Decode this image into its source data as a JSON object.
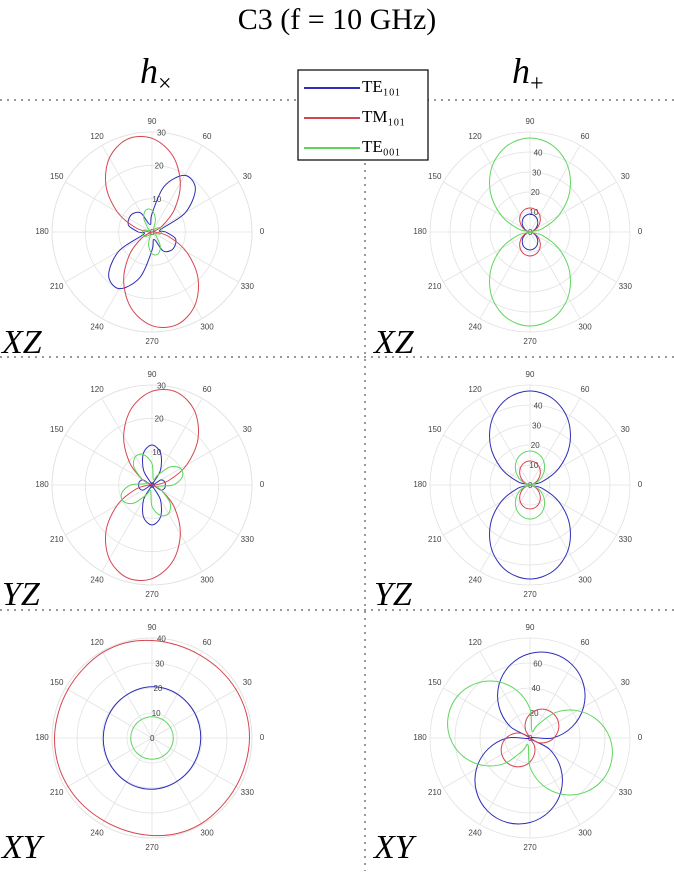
{
  "figure": {
    "title": "C3 (f = 10 GHz)",
    "column_labels": [
      {
        "base": "h",
        "sub": "×"
      },
      {
        "base": "h",
        "sub": "+"
      }
    ],
    "row_labels": [
      "XZ",
      "XZ",
      "YZ",
      "YZ",
      "XY",
      "XY"
    ],
    "legend": [
      {
        "name": "TE₁₀₁",
        "color": "#2e2eb8"
      },
      {
        "name": "TM₁₀₁",
        "color": "#d6454f"
      },
      {
        "name": "TE₀₀₁",
        "color": "#5ed65e"
      }
    ]
  },
  "chart_data": [
    {
      "type": "polar",
      "rlim": [
        0,
        30
      ],
      "rticks": [
        0,
        10,
        20,
        30
      ],
      "thetaticks": [
        0,
        30,
        60,
        90,
        120,
        150,
        180,
        210,
        240,
        270,
        300,
        330
      ],
      "theta": [
        0,
        15,
        30,
        45,
        60,
        75,
        90,
        105,
        120,
        135,
        150,
        165,
        180,
        195,
        210,
        225,
        240,
        255,
        270,
        285,
        300,
        315,
        330,
        345
      ],
      "series": [
        [
          4.1,
          2.6,
          11.5,
          18.4,
          19.6,
          14.2,
          5.5,
          2.3,
          6.5,
          7.9,
          8.0,
          7.2,
          4.1,
          2.6,
          11.5,
          18.4,
          19.6,
          14.2,
          5.5,
          2.3,
          6.5,
          7.9,
          8.0,
          7.2
        ],
        [
          0.9,
          0.2,
          3.4,
          9.5,
          17.0,
          23.8,
          28.1,
          28.8,
          25.6,
          19.5,
          12.0,
          5.2,
          0.9,
          0.2,
          3.4,
          9.5,
          17.0,
          23.8,
          28.1,
          28.8,
          25.6,
          19.5,
          12.0,
          5.2
        ],
        [
          2.9,
          3.0,
          2.7,
          1.5,
          0.9,
          4.0,
          6.5,
          6.9,
          5.0,
          1.9,
          0.8,
          2.4,
          2.9,
          3.0,
          2.7,
          1.5,
          0.9,
          4.0,
          6.5,
          6.9,
          5.0,
          1.9,
          0.8,
          2.4
        ]
      ]
    },
    {
      "type": "polar",
      "rlim": [
        0,
        50
      ],
      "rticks": [
        0,
        10,
        20,
        30,
        40
      ],
      "thetaticks": [
        0,
        30,
        60,
        90,
        120,
        150,
        180,
        210,
        240,
        270,
        300,
        330
      ],
      "theta": [
        0,
        15,
        30,
        45,
        60,
        75,
        90,
        105,
        120,
        135,
        150,
        165,
        180,
        195,
        210,
        225,
        240,
        255,
        270,
        285,
        300,
        315,
        330,
        345
      ],
      "series": [
        [
          0,
          1.2,
          3.2,
          5.4,
          7.3,
          8.5,
          9,
          8.5,
          7.3,
          5.4,
          3.2,
          1.2,
          0,
          1.2,
          3.2,
          5.4,
          7.3,
          8.5,
          9,
          8.5,
          7.3,
          5.4,
          3.2,
          1.2
        ],
        [
          0,
          1.6,
          4.2,
          7.1,
          9.7,
          11.4,
          12,
          11.4,
          9.7,
          7.1,
          4.2,
          1.6,
          0,
          1.6,
          4.2,
          7.1,
          9.7,
          11.4,
          12,
          11.4,
          9.7,
          7.1,
          4.2,
          1.6
        ],
        [
          0,
          6.2,
          16.6,
          28.0,
          37.9,
          44.6,
          47,
          44.6,
          37.9,
          28.0,
          16.6,
          6.2,
          0,
          6.2,
          16.6,
          28.0,
          37.9,
          44.6,
          47,
          44.6,
          37.9,
          28.0,
          16.6,
          6.2
        ]
      ]
    },
    {
      "type": "polar",
      "rlim": [
        0,
        30
      ],
      "rticks": [
        0,
        10,
        20,
        30
      ],
      "thetaticks": [
        0,
        30,
        60,
        90,
        120,
        150,
        180,
        210,
        240,
        270,
        300,
        330
      ],
      "theta": [
        0,
        15,
        30,
        45,
        60,
        75,
        90,
        105,
        120,
        135,
        150,
        165,
        180,
        195,
        210,
        225,
        240,
        255,
        270,
        285,
        300,
        315,
        330,
        345
      ],
      "series": [
        [
          4,
          3.9,
          3.0,
          0,
          5.0,
          9.9,
          12,
          9.9,
          5.0,
          0,
          3.0,
          3.9,
          4,
          3.9,
          3.0,
          0,
          5.0,
          9.9,
          12,
          9.9,
          5.0,
          0,
          3.0,
          3.9
        ],
        [
          0.9,
          5.2,
          12.0,
          19.5,
          25.6,
          28.8,
          28.1,
          23.8,
          17.0,
          9.5,
          3.4,
          0.2,
          0.9,
          5.2,
          12.0,
          19.5,
          25.6,
          28.8,
          28.1,
          23.8,
          17.0,
          9.5,
          3.4,
          0.2
        ],
        [
          6.4,
          9.4,
          9.9,
          7.7,
          3.4,
          1.7,
          6.4,
          9.4,
          9.9,
          7.7,
          3.4,
          1.7,
          6.4,
          9.4,
          9.9,
          7.7,
          3.4,
          1.7,
          6.4,
          9.4,
          9.9,
          7.7,
          3.4,
          1.7
        ]
      ]
    },
    {
      "type": "polar",
      "rlim": [
        0,
        50
      ],
      "rticks": [
        0,
        10,
        20,
        30,
        40
      ],
      "thetaticks": [
        0,
        30,
        60,
        90,
        120,
        150,
        180,
        210,
        240,
        270,
        300,
        330
      ],
      "theta": [
        0,
        15,
        30,
        45,
        60,
        75,
        90,
        105,
        120,
        135,
        150,
        165,
        180,
        195,
        210,
        225,
        240,
        255,
        270,
        285,
        300,
        315,
        330,
        345
      ],
      "series": [
        [
          0,
          6.2,
          16.6,
          28.0,
          37.9,
          44.6,
          47,
          44.6,
          37.9,
          28.0,
          16.6,
          6.2,
          0,
          6.2,
          16.6,
          28.0,
          37.9,
          44.6,
          47,
          44.6,
          37.9,
          28.0,
          16.6,
          6.2
        ],
        [
          0,
          1.6,
          4.2,
          7.1,
          9.7,
          11.4,
          12,
          11.4,
          9.7,
          7.1,
          4.2,
          1.6,
          0,
          1.6,
          4.2,
          7.1,
          9.7,
          11.4,
          12,
          11.4,
          9.7,
          7.1,
          4.2,
          1.6
        ],
        [
          0,
          2.2,
          6.0,
          10.1,
          13.7,
          16.1,
          17,
          16.1,
          13.7,
          10.1,
          6.0,
          2.2,
          0,
          2.2,
          6.0,
          10.1,
          13.7,
          16.1,
          17,
          16.1,
          13.7,
          10.1,
          6.0,
          2.2
        ]
      ]
    },
    {
      "type": "polar",
      "rlim": [
        0,
        40
      ],
      "rticks": [
        0,
        10,
        20,
        30,
        40
      ],
      "thetaticks": [
        0,
        30,
        60,
        90,
        120,
        150,
        180,
        210,
        240,
        270,
        300,
        330
      ],
      "theta": [
        0,
        15,
        30,
        45,
        60,
        75,
        90,
        105,
        120,
        135,
        150,
        165,
        180,
        195,
        210,
        225,
        240,
        255,
        270,
        285,
        300,
        315,
        330,
        345
      ],
      "series": [
        [
          19.5,
          19.6,
          19.8,
          20,
          20.3,
          20.5,
          20.5,
          20.3,
          20,
          19.8,
          19.6,
          19.5,
          19.5,
          19.6,
          19.8,
          20,
          20.3,
          20.5,
          20.5,
          20.3,
          20,
          19.8,
          19.6,
          19.5
        ],
        [
          39,
          39,
          38.8,
          38.5,
          38.3,
          38.5,
          39,
          39.5,
          39.5,
          39,
          38.8,
          38.8,
          39,
          39,
          38.8,
          38.5,
          38.3,
          38.5,
          39,
          39.5,
          39.5,
          39,
          38.8,
          38.8
        ],
        [
          8.5,
          8.5,
          8.5,
          8.5,
          8.5,
          8.5,
          8.5,
          8.5,
          8.5,
          8.5,
          8.5,
          8.5,
          8.5,
          8.5,
          8.5,
          8.5,
          8.5,
          8.5,
          8.5,
          8.5,
          8.5,
          8.5,
          8.5,
          8.5
        ]
      ]
    },
    {
      "type": "polar",
      "rlim": [
        0,
        80
      ],
      "rticks": [
        0,
        20,
        40,
        60
      ],
      "thetaticks": [
        0,
        30,
        60,
        90,
        120,
        150,
        180,
        210,
        240,
        270,
        300,
        330
      ],
      "theta": [
        0,
        15,
        30,
        45,
        60,
        75,
        90,
        105,
        120,
        135,
        150,
        165,
        180,
        195,
        210,
        225,
        240,
        255,
        270,
        285,
        300,
        315,
        330,
        345
      ],
      "series": [
        [
          18.1,
          35,
          49.5,
          60.6,
          67.6,
          70,
          67.6,
          60.6,
          49.5,
          35,
          18.1,
          0,
          18.1,
          35,
          49.5,
          60.6,
          67.6,
          70,
          67.6,
          60.6,
          49.5,
          35,
          18.1,
          0
        ],
        [
          19.1,
          23.4,
          26.1,
          27,
          26.1,
          23.4,
          19.1,
          13.5,
          7.0,
          0,
          7.0,
          13.5,
          19.1,
          23.4,
          26.1,
          27,
          26.1,
          23.4,
          19.1,
          13.5,
          7.0,
          0,
          7.0,
          13.5
        ],
        [
          63.9,
          55.7,
          43.7,
          28.8,
          11.8,
          5.9,
          23.3,
          39.0,
          52.1,
          61.6,
          67.0,
          67.7,
          63.9,
          55.7,
          43.7,
          28.8,
          11.8,
          5.9,
          23.3,
          39.0,
          52.1,
          61.6,
          67.0,
          67.7
        ]
      ]
    }
  ]
}
